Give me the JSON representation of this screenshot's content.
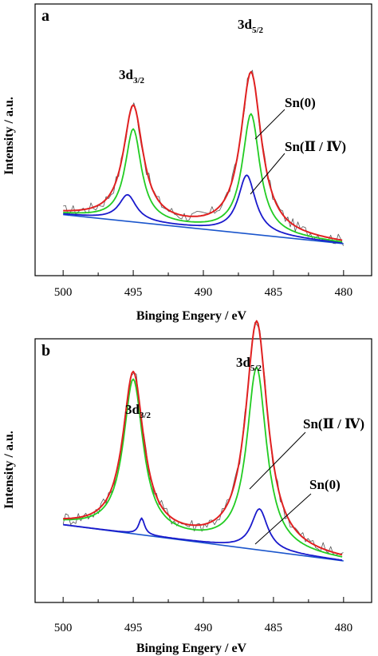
{
  "chart_data": [
    {
      "panel": "a",
      "type": "line",
      "xlabel": "Binging Engery / eV",
      "ylabel": "Intensity / a.u.",
      "xlim": [
        502,
        478
      ],
      "x_ticks": [
        500,
        495,
        490,
        485,
        480
      ],
      "x_reversed": true,
      "y_ticks_shown": false,
      "legend": "none",
      "grid": false,
      "colors": {
        "raw": "#555555",
        "envelope": "#e02020",
        "sn0": "#22cc22",
        "sn24": "#1a1acc",
        "background": "#1a55cc"
      },
      "peak_labels": [
        {
          "main": "3d",
          "sub": "3/2",
          "x": 495.0
        },
        {
          "main": "3d",
          "sub": "5/2",
          "x": 486.5
        }
      ],
      "component_labels": [
        "Sn(0)",
        "Sn(Ⅱ / Ⅳ)"
      ],
      "series": [
        {
          "role": "background",
          "color": "#1a55cc",
          "x": [
            500,
            480
          ],
          "y": [
            0.07,
            -0.12
          ]
        },
        {
          "role": "sn0",
          "color": "#22cc22",
          "peaks": [
            {
              "center": 495.0,
              "height": 0.6,
              "width": 0.7
            },
            {
              "center": 486.6,
              "height": 0.78,
              "width": 0.75
            }
          ]
        },
        {
          "role": "sn24",
          "color": "#1a1acc",
          "peaks": [
            {
              "center": 495.4,
              "height": 0.17,
              "width": 0.75
            },
            {
              "center": 486.9,
              "height": 0.38,
              "width": 0.75
            }
          ]
        },
        {
          "role": "envelope",
          "color": "#e02020",
          "peaks": [
            {
              "center": 495.0,
              "height": 0.75,
              "width": 0.85
            },
            {
              "center": 486.6,
              "height": 1.05,
              "width": 0.9
            }
          ]
        },
        {
          "role": "raw",
          "color": "#555555",
          "noise": 0.035,
          "follows": "envelope"
        }
      ]
    },
    {
      "panel": "b",
      "type": "line",
      "xlabel": "Binging Engery / eV",
      "ylabel": "Intensity / a.u.",
      "xlim": [
        502,
        478
      ],
      "x_ticks": [
        500,
        495,
        490,
        485,
        480
      ],
      "x_reversed": true,
      "y_ticks_shown": false,
      "legend": "none",
      "grid": false,
      "colors": {
        "raw": "#555555",
        "envelope": "#e02020",
        "sn0": "#1a1acc",
        "sn24": "#22cc22",
        "background": "#1a55cc"
      },
      "peak_labels": [
        {
          "main": "3d",
          "sub": "3/2",
          "x": 495.0
        },
        {
          "main": "3d",
          "sub": "5/2",
          "x": 486.3
        }
      ],
      "component_labels": [
        "Sn(Ⅱ / Ⅳ)",
        "Sn(0)"
      ],
      "series": [
        {
          "role": "background",
          "color": "#1a55cc",
          "x": [
            500,
            480
          ],
          "y": [
            0.05,
            -0.17
          ]
        },
        {
          "role": "sn24",
          "color": "#22cc22",
          "peaks": [
            {
              "center": 495.0,
              "height": 0.93,
              "width": 0.85
            },
            {
              "center": 486.2,
              "height": 1.1,
              "width": 0.85
            }
          ]
        },
        {
          "role": "sn0",
          "color": "#1a1acc",
          "peaks": [
            {
              "center": 494.4,
              "height": 0.1,
              "width": 0.25
            },
            {
              "center": 486.0,
              "height": 0.25,
              "width": 0.7
            }
          ]
        },
        {
          "role": "envelope",
          "color": "#e02020",
          "peaks": [
            {
              "center": 495.0,
              "height": 0.97,
              "width": 0.9
            },
            {
              "center": 486.2,
              "height": 1.38,
              "width": 0.95
            }
          ]
        },
        {
          "role": "raw",
          "color": "#555555",
          "noise": 0.04,
          "follows": "envelope"
        }
      ]
    }
  ]
}
